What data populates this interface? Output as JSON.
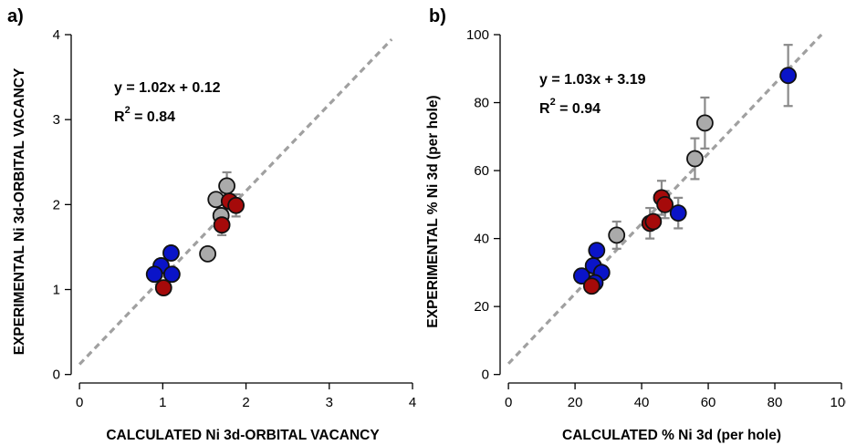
{
  "chart_data": [
    {
      "type": "scatter",
      "panel_label": "a)",
      "xlabel": "CALCULATED Ni 3d-ORBITAL VACANCY",
      "ylabel": "EXPERIMENTAL Ni 3d-ORBITAL VACANCY",
      "xlim": [
        -0.1,
        4.0
      ],
      "ylim": [
        -0.1,
        4.0
      ],
      "xticks": [
        0,
        1,
        2,
        3,
        4
      ],
      "yticks": [
        0,
        1,
        2,
        3,
        4
      ],
      "equation": "y = 1.02x + 0.12",
      "r2_prefix": "R",
      "r2_sup": "2",
      "r2_value": " = 0.84",
      "fit": {
        "slope": 1.02,
        "intercept": 0.12,
        "x_range": [
          0.0,
          3.75
        ]
      },
      "colors": {
        "blue": "#0a14c8",
        "red": "#a50a0a",
        "gray": "#aaaaaa",
        "fit": "#a0a0a0",
        "error": "#8a8a8a"
      },
      "points": [
        {
          "x": 1.1,
          "y": 1.43,
          "color": "blue"
        },
        {
          "x": 0.98,
          "y": 1.28,
          "color": "blue"
        },
        {
          "x": 0.9,
          "y": 1.18,
          "color": "blue"
        },
        {
          "x": 1.11,
          "y": 1.18,
          "color": "blue"
        },
        {
          "x": 1.01,
          "y": 1.02,
          "color": "red"
        },
        {
          "x": 1.54,
          "y": 1.42,
          "color": "gray"
        },
        {
          "x": 1.64,
          "y": 2.06,
          "color": "gray"
        },
        {
          "x": 1.77,
          "y": 2.22,
          "color": "gray",
          "err": 0.16
        },
        {
          "x": 1.7,
          "y": 1.87,
          "color": "gray"
        },
        {
          "x": 1.8,
          "y": 2.04,
          "color": "red"
        },
        {
          "x": 1.88,
          "y": 1.99,
          "color": "red",
          "err": 0.13
        },
        {
          "x": 1.71,
          "y": 1.76,
          "color": "red",
          "err": 0.12
        }
      ]
    },
    {
      "type": "scatter",
      "panel_label": "b)",
      "xlabel": "CALCULATED % Ni 3d (per hole)",
      "ylabel": "EXPERIMENTAL % Ni 3d (per hole)",
      "xlim": [
        -2.5,
        100
      ],
      "ylim": [
        -2.5,
        100
      ],
      "xticks": [
        0,
        20,
        40,
        60,
        80,
        100
      ],
      "yticks": [
        0,
        20,
        40,
        60,
        80,
        100
      ],
      "equation": "y = 1.03x + 3.19",
      "r2_prefix": "R",
      "r2_sup": "2",
      "r2_value": " = 0.94",
      "fit": {
        "slope": 1.03,
        "intercept": 3.19,
        "x_range": [
          0,
          94
        ]
      },
      "colors": {
        "blue": "#0a14c8",
        "red": "#a50a0a",
        "gray": "#aaaaaa",
        "fit": "#a0a0a0",
        "error": "#8a8a8a"
      },
      "points": [
        {
          "x": 22.0,
          "y": 29.0,
          "color": "blue"
        },
        {
          "x": 25.5,
          "y": 32.0,
          "color": "blue"
        },
        {
          "x": 26.5,
          "y": 36.5,
          "color": "blue"
        },
        {
          "x": 28.0,
          "y": 30.0,
          "color": "blue"
        },
        {
          "x": 26.0,
          "y": 27.0,
          "color": "blue"
        },
        {
          "x": 25.0,
          "y": 26.0,
          "color": "red"
        },
        {
          "x": 32.5,
          "y": 41.0,
          "color": "gray",
          "err": 4.0
        },
        {
          "x": 42.5,
          "y": 44.5,
          "color": "red",
          "err": 4.5
        },
        {
          "x": 43.5,
          "y": 45.0,
          "color": "red"
        },
        {
          "x": 46.0,
          "y": 52.0,
          "color": "red",
          "err": 5.0
        },
        {
          "x": 47.0,
          "y": 50.0,
          "color": "red",
          "err": 4.0
        },
        {
          "x": 51.0,
          "y": 47.5,
          "color": "blue",
          "err": 4.5
        },
        {
          "x": 56.0,
          "y": 63.5,
          "color": "gray",
          "err": 6.0
        },
        {
          "x": 59.0,
          "y": 74.0,
          "color": "gray",
          "err": 7.5
        },
        {
          "x": 84.0,
          "y": 88.0,
          "color": "blue",
          "err": 9.0
        }
      ]
    }
  ]
}
